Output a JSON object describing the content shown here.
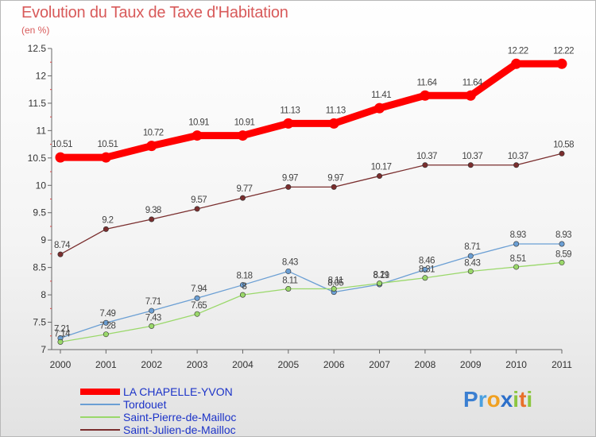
{
  "chart_data": {
    "type": "line",
    "title": "Evolution du Taux de Taxe d'Habitation",
    "subtitle": "(en %)",
    "x": [
      "2000",
      "2001",
      "2002",
      "2003",
      "2004",
      "2005",
      "2006",
      "2007",
      "2008",
      "2009",
      "2010",
      "2011"
    ],
    "ylim": [
      7,
      12.5
    ],
    "yticks": [
      "7",
      "7.5",
      "8",
      "8.5",
      "9",
      "9.5",
      "10",
      "10.5",
      "11",
      "11.5",
      "12",
      "12.5"
    ],
    "grid": false,
    "legend_position": "bottom-left",
    "series": [
      {
        "name": "LA CHAPELLE-YVON",
        "color": "#ff0000",
        "values": [
          10.51,
          10.51,
          10.72,
          10.91,
          10.91,
          11.13,
          11.13,
          11.41,
          11.64,
          11.64,
          12.22,
          12.22
        ],
        "labels": [
          "10.51",
          "10.51",
          "10.72",
          "10.91",
          "10.91",
          "11.13",
          "11.13",
          "11.41",
          "11.64",
          "11.64",
          "12.22",
          "12.22"
        ]
      },
      {
        "name": "Tordouet",
        "color": "#6b9fd4",
        "values": [
          7.21,
          7.49,
          7.71,
          7.94,
          8.18,
          8.43,
          8.05,
          8.19,
          8.46,
          8.71,
          8.93,
          8.93
        ],
        "labels": [
          "7.21",
          "7.49",
          "7.71",
          "7.94",
          "8.18",
          "8.43",
          "8.05",
          "8.19",
          "8.46",
          "8.71",
          "8.93",
          "8.93"
        ]
      },
      {
        "name": "Saint-Pierre-de-Mailloc",
        "color": "#9ad86a",
        "values": [
          7.14,
          7.28,
          7.43,
          7.65,
          8,
          8.11,
          8.11,
          8.21,
          8.31,
          8.43,
          8.51,
          8.59
        ],
        "labels": [
          "7.14",
          "7.28",
          "7.43",
          "7.65",
          "8",
          "8.11",
          "8.11",
          "8.21",
          "8.31",
          "8.43",
          "8.51",
          "8.59"
        ]
      },
      {
        "name": "Saint-Julien-de-Mailloc",
        "color": "#7a2e2e",
        "values": [
          8.74,
          9.2,
          9.38,
          9.57,
          9.77,
          9.97,
          9.97,
          10.17,
          10.37,
          10.37,
          10.37,
          10.58
        ],
        "labels": [
          "8.74",
          "9.2",
          "9.38",
          "9.57",
          "9.77",
          "9.97",
          "9.97",
          "10.17",
          "10.37",
          "10.37",
          "10.37",
          "10.58"
        ]
      }
    ]
  },
  "brand": {
    "name": "Proxiti"
  }
}
